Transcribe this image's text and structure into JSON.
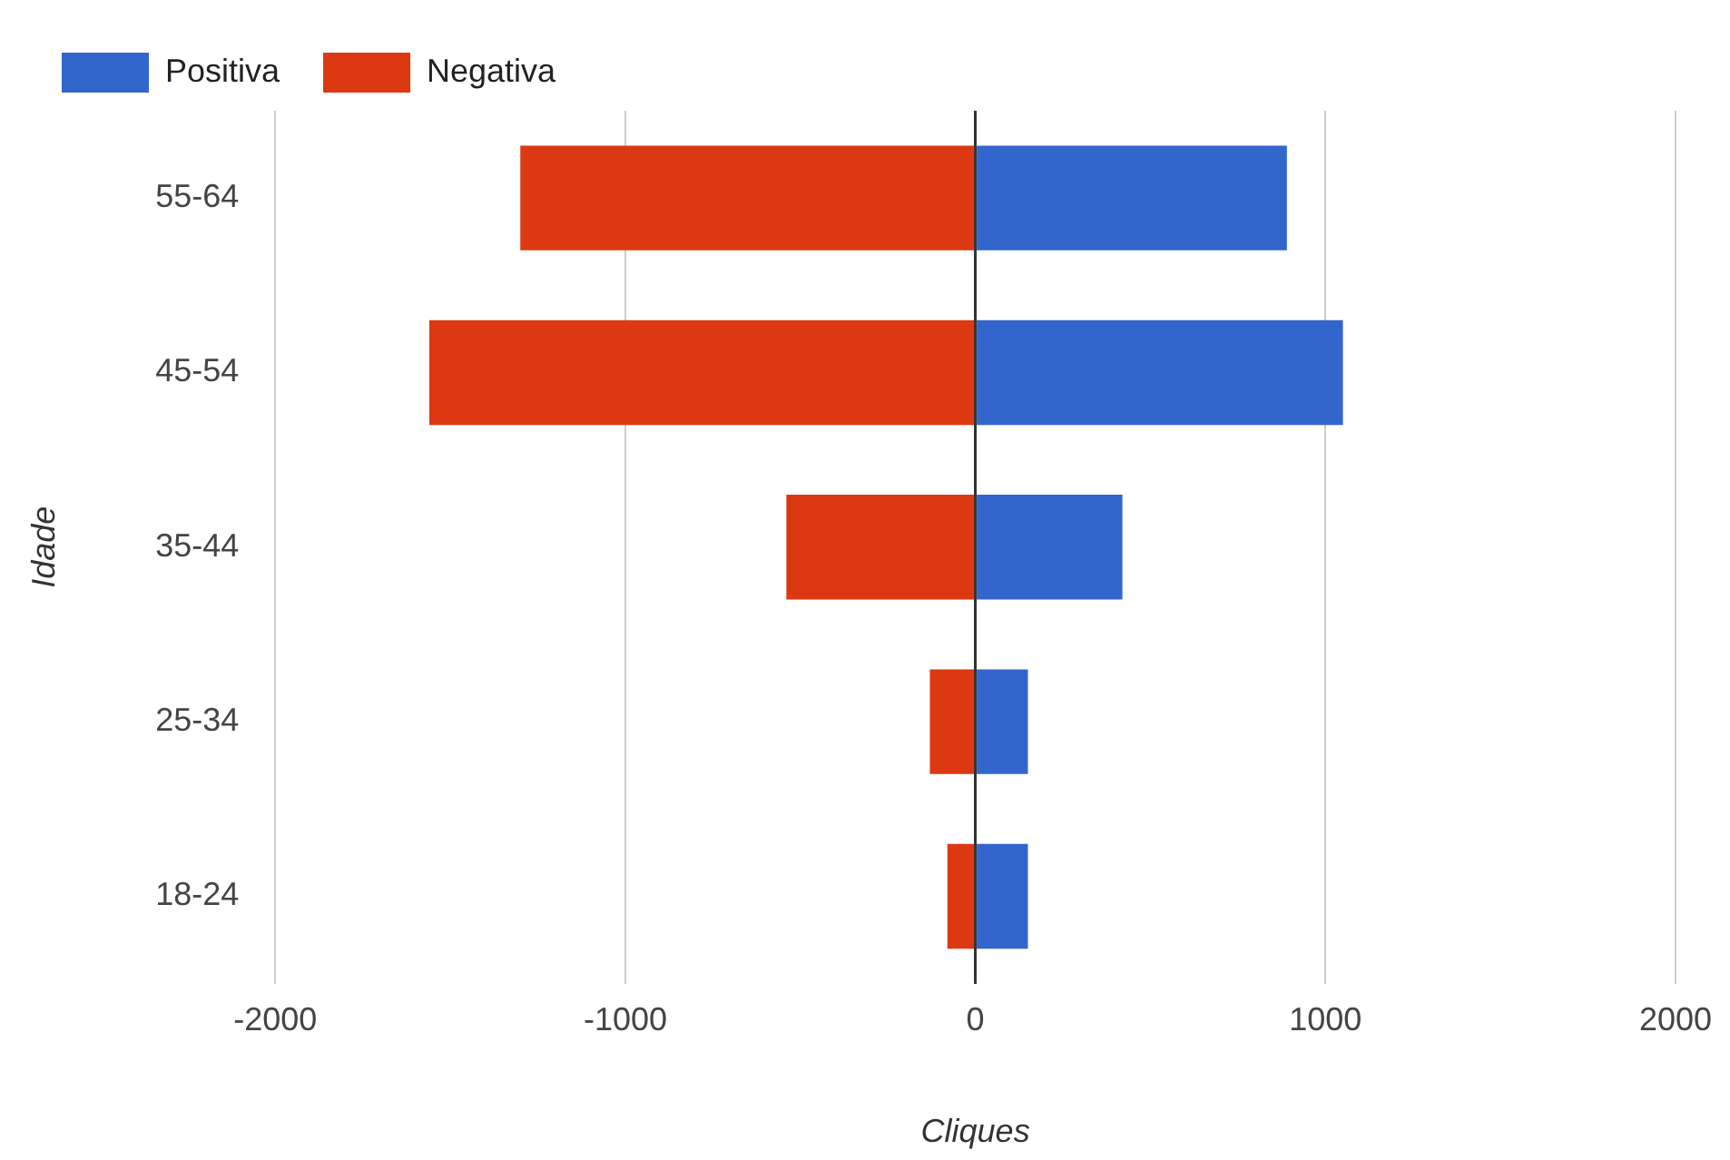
{
  "chart_data": {
    "type": "bar",
    "orientation": "horizontal",
    "stacked": true,
    "xlabel": "Cliques",
    "ylabel": "Idade",
    "categories": [
      "55-64",
      "45-54",
      "35-44",
      "25-34",
      "18-24"
    ],
    "series": [
      {
        "name": "Positiva",
        "color": "#3366cc",
        "values": [
          890,
          1050,
          420,
          150,
          150
        ]
      },
      {
        "name": "Negativa",
        "color": "#dc3912",
        "values": [
          -1300,
          -1560,
          -540,
          -130,
          -80
        ]
      }
    ],
    "xlim": [
      -2000,
      2000
    ],
    "xticks": [
      -2000,
      -1000,
      0,
      1000,
      2000
    ],
    "grid": "x",
    "legend": "top left"
  }
}
